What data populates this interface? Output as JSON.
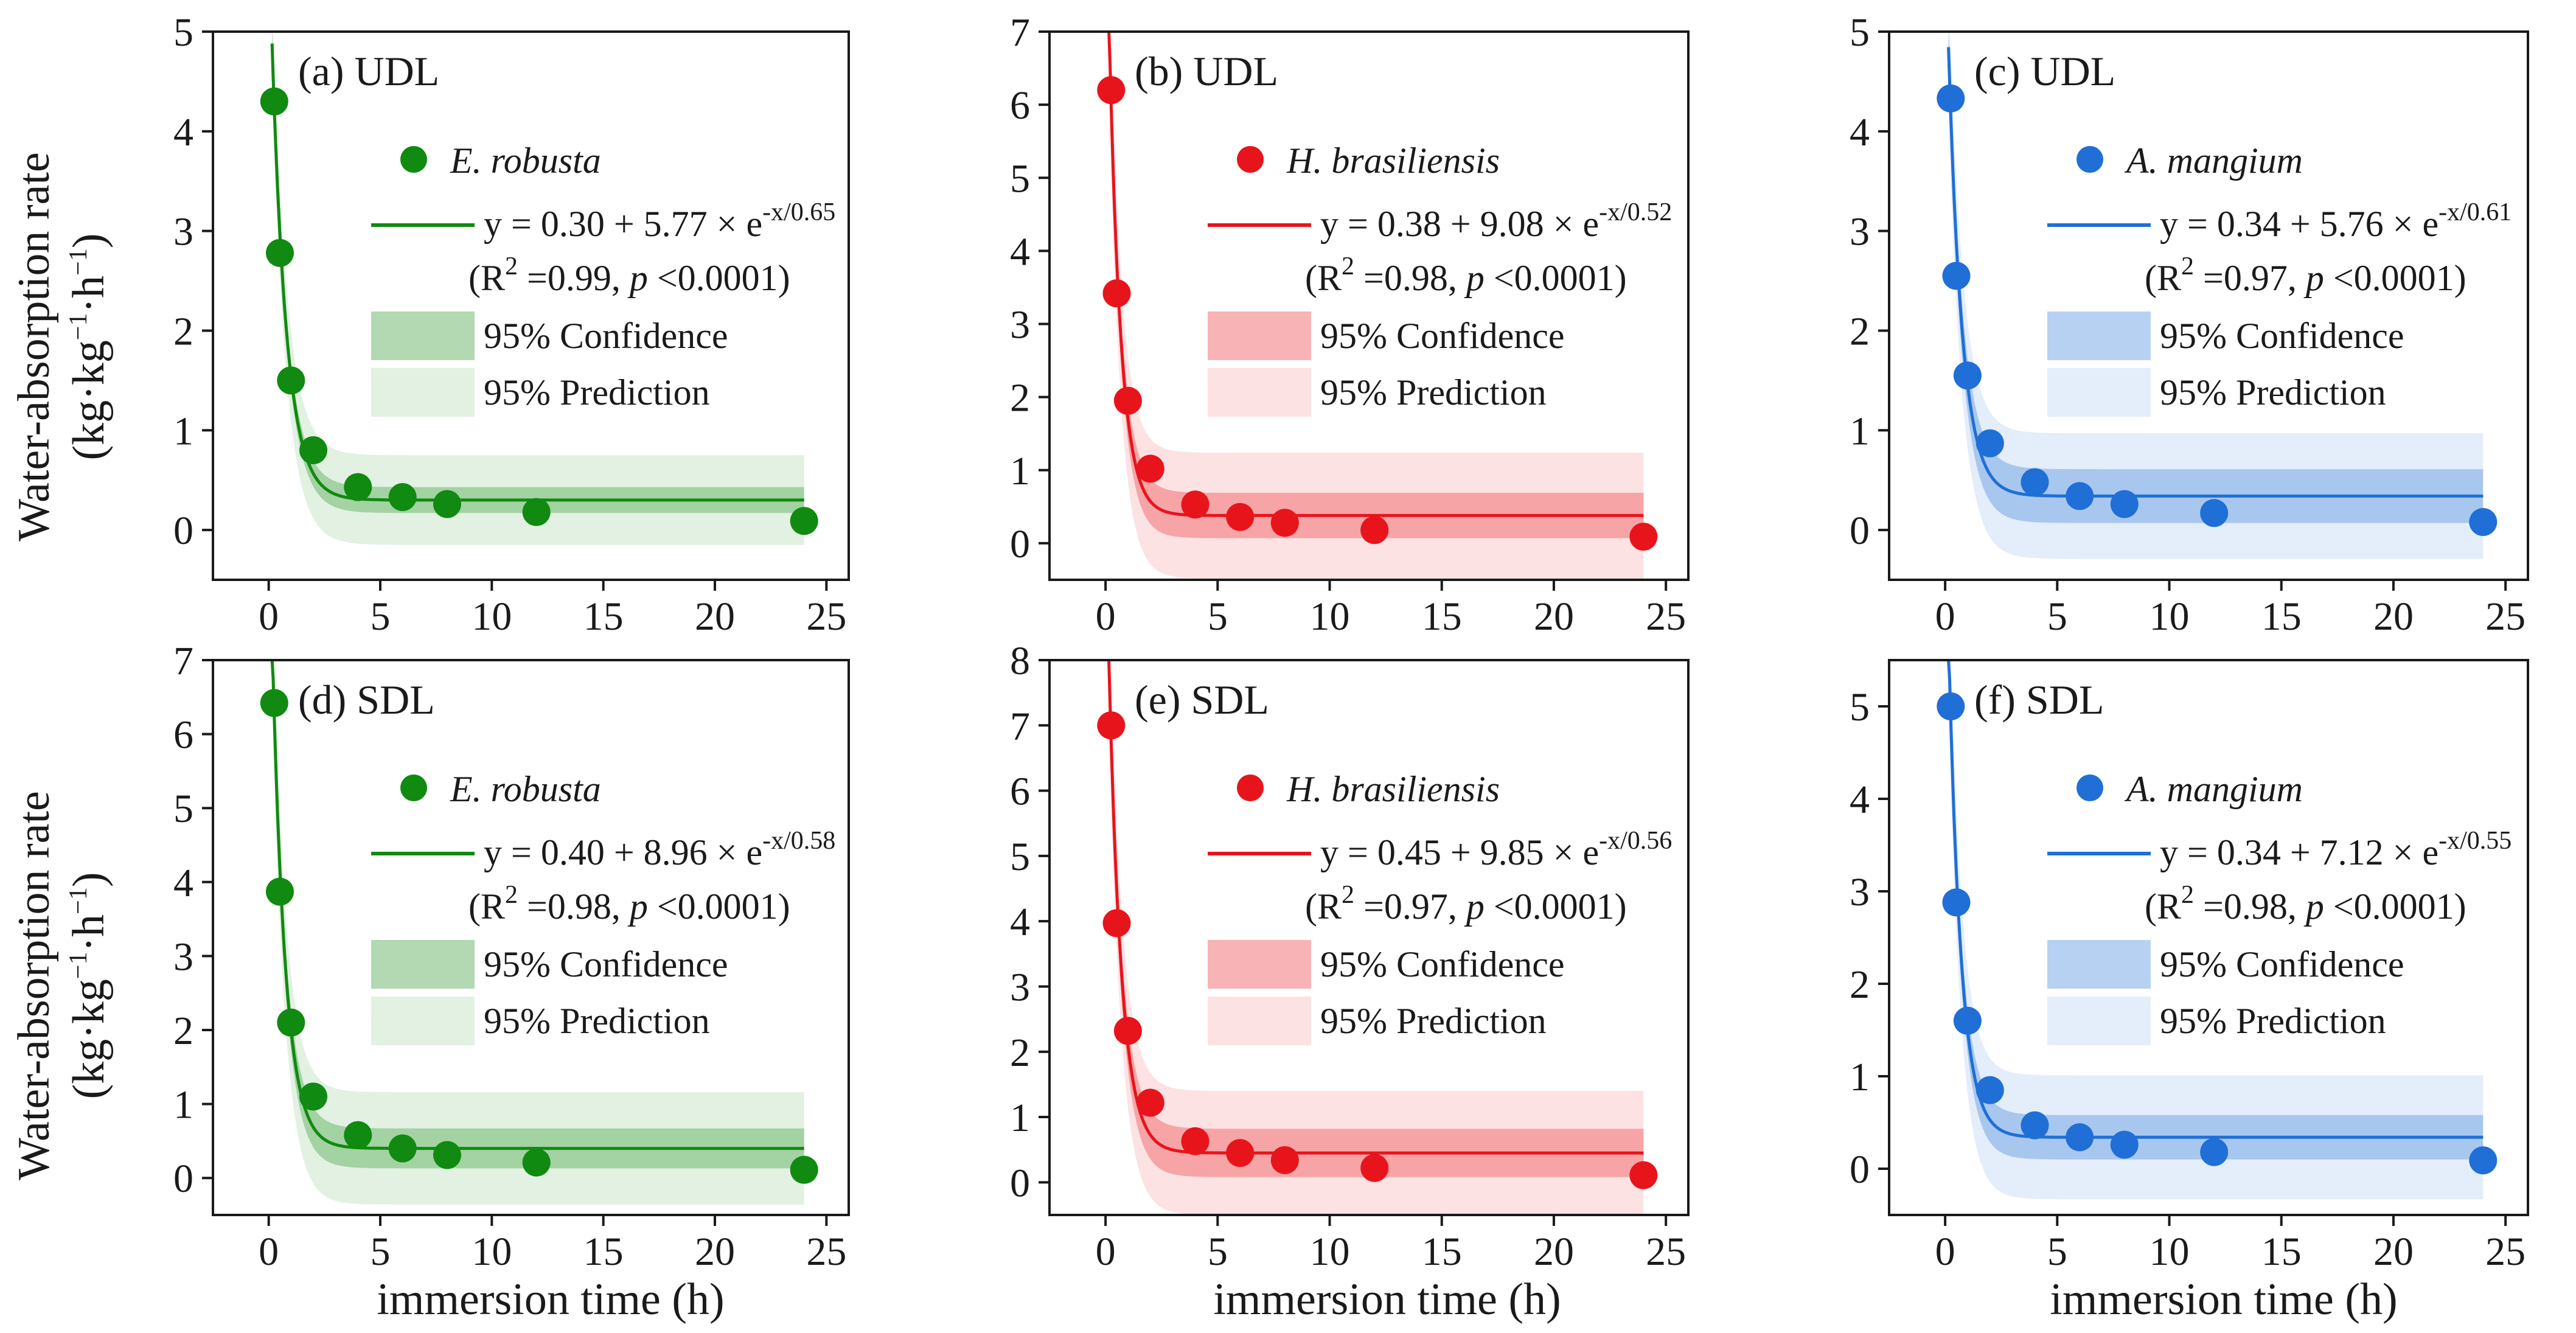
{
  "figure": {
    "y_axis_label_line1": "Water-absorption rate",
    "y_axis_label_line2_base": "(kg·kg",
    "y_axis_label_line2_sup1": "−1",
    "y_axis_label_line2_mid": "·h",
    "y_axis_label_line2_sup2": "−1",
    "y_axis_label_line2_end": ")",
    "x_axis_label": "immersion time (h)",
    "legend_confidence": "95% Confidence",
    "legend_prediction": "95% Prediction",
    "colors": {
      "E. robusta": "#108a10",
      "H. brasiliensis": "#e8141c",
      "A. mangium": "#1f6fd6"
    }
  },
  "chart_data": [
    {
      "type": "scatter",
      "panel": "(a) UDL",
      "species": "E. robusta",
      "color_key": "E. robusta",
      "x": [
        0.25,
        0.5,
        1,
        2,
        4,
        6,
        8,
        12,
        24
      ],
      "y": [
        4.3,
        2.78,
        1.5,
        0.8,
        0.43,
        0.33,
        0.26,
        0.18,
        0.09
      ],
      "fit": {
        "y0": 0.3,
        "A": 5.77,
        "t": 0.65
      },
      "ci_half": 0.13,
      "pi_half": 0.45,
      "equation": "y = 0.30 + 5.77 × e",
      "equation_exp": "-x/0.65",
      "r2_text": "=0.99, ",
      "p_text": " <0.0001)",
      "xlim": [
        -2.5,
        26
      ],
      "ylim": [
        -0.5,
        5
      ],
      "xticks": [
        0,
        5,
        10,
        15,
        20,
        25
      ],
      "yticks": [
        0,
        1,
        2,
        3,
        4,
        5
      ]
    },
    {
      "type": "scatter",
      "panel": "(b) UDL",
      "species": "H. brasiliensis",
      "color_key": "H. brasiliensis",
      "x": [
        0.25,
        0.5,
        1,
        2,
        4,
        6,
        8,
        12,
        24
      ],
      "y": [
        6.2,
        3.42,
        1.95,
        1.02,
        0.53,
        0.36,
        0.28,
        0.18,
        0.09
      ],
      "fit": {
        "y0": 0.38,
        "A": 9.08,
        "t": 0.52
      },
      "ci_half": 0.31,
      "pi_half": 0.86,
      "equation": "y = 0.38 + 9.08 × e",
      "equation_exp": "-x/0.52",
      "r2_text": "=0.98, ",
      "p_text": " <0.0001)",
      "xlim": [
        -2.5,
        26
      ],
      "ylim": [
        -0.5,
        7
      ],
      "xticks": [
        0,
        5,
        10,
        15,
        20,
        25
      ],
      "yticks": [
        0,
        1,
        2,
        3,
        4,
        5,
        6,
        7
      ]
    },
    {
      "type": "scatter",
      "panel": "(c) UDL",
      "species": "A. mangium",
      "color_key": "A. mangium",
      "x": [
        0.25,
        0.5,
        1,
        2,
        4,
        6,
        8,
        12,
        24
      ],
      "y": [
        4.33,
        2.55,
        1.55,
        0.87,
        0.48,
        0.34,
        0.26,
        0.17,
        0.08
      ],
      "fit": {
        "y0": 0.34,
        "A": 5.76,
        "t": 0.61
      },
      "ci_half": 0.27,
      "pi_half": 0.63,
      "equation": "y = 0.34 + 5.76 × e",
      "equation_exp": "-x/0.61",
      "r2_text": "=0.97, ",
      "p_text": " <0.0001)",
      "xlim": [
        -2.5,
        26
      ],
      "ylim": [
        -0.5,
        5
      ],
      "xticks": [
        0,
        5,
        10,
        15,
        20,
        25
      ],
      "yticks": [
        0,
        1,
        2,
        3,
        4,
        5
      ]
    },
    {
      "type": "scatter",
      "panel": "(d) SDL",
      "species": "E. robusta",
      "color_key": "E. robusta",
      "x": [
        0.25,
        0.5,
        1,
        2,
        4,
        6,
        8,
        12,
        24
      ],
      "y": [
        6.42,
        3.87,
        2.1,
        1.1,
        0.58,
        0.4,
        0.31,
        0.21,
        0.11
      ],
      "fit": {
        "y0": 0.4,
        "A": 8.96,
        "t": 0.58
      },
      "ci_half": 0.27,
      "pi_half": 0.76,
      "equation": "y = 0.40 + 8.96 × e",
      "equation_exp": "-x/0.58",
      "r2_text": "=0.98, ",
      "p_text": " <0.0001)",
      "xlim": [
        -2.5,
        26
      ],
      "ylim": [
        -0.5,
        7
      ],
      "xticks": [
        0,
        5,
        10,
        15,
        20,
        25
      ],
      "yticks": [
        0,
        1,
        2,
        3,
        4,
        5,
        6,
        7
      ]
    },
    {
      "type": "scatter",
      "panel": "(e) SDL",
      "species": "H. brasiliensis",
      "color_key": "H. brasiliensis",
      "x": [
        0.25,
        0.5,
        1,
        2,
        4,
        6,
        8,
        12,
        24
      ],
      "y": [
        7.0,
        3.97,
        2.32,
        1.22,
        0.63,
        0.45,
        0.34,
        0.22,
        0.11
      ],
      "fit": {
        "y0": 0.45,
        "A": 9.85,
        "t": 0.56
      },
      "ci_half": 0.37,
      "pi_half": 0.95,
      "equation": "y = 0.45 + 9.85 × e",
      "equation_exp": "-x/0.56",
      "r2_text": "=0.97, ",
      "p_text": " <0.0001)",
      "xlim": [
        -2.5,
        26
      ],
      "ylim": [
        -0.5,
        8
      ],
      "xticks": [
        0,
        5,
        10,
        15,
        20,
        25
      ],
      "yticks": [
        0,
        1,
        2,
        3,
        4,
        5,
        6,
        7,
        8
      ]
    },
    {
      "type": "scatter",
      "panel": "(f) SDL",
      "species": "A. mangium",
      "color_key": "A. mangium",
      "x": [
        0.25,
        0.5,
        1,
        2,
        4,
        6,
        8,
        12,
        24
      ],
      "y": [
        5.0,
        2.88,
        1.6,
        0.85,
        0.47,
        0.34,
        0.26,
        0.18,
        0.09
      ],
      "fit": {
        "y0": 0.34,
        "A": 7.12,
        "t": 0.55
      },
      "ci_half": 0.24,
      "pi_half": 0.67,
      "equation": "y = 0.34 + 7.12 × e",
      "equation_exp": "-x/0.55",
      "r2_text": "=0.98, ",
      "p_text": " <0.0001)",
      "xlim": [
        -2.5,
        26
      ],
      "ylim": [
        -0.5,
        5.5
      ],
      "xticks": [
        0,
        5,
        10,
        15,
        20,
        25
      ],
      "yticks": [
        0,
        1,
        2,
        3,
        4,
        5
      ]
    }
  ]
}
